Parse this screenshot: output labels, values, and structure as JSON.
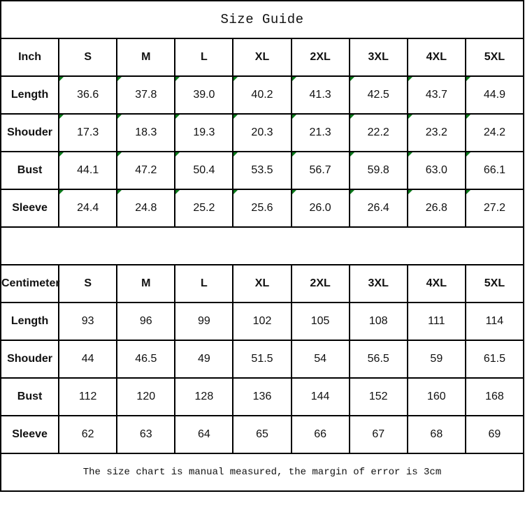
{
  "title": "Size Guide",
  "sizes": [
    "S",
    "M",
    "L",
    "XL",
    "2XL",
    "3XL",
    "4XL",
    "5XL"
  ],
  "inch": {
    "label": "Inch",
    "rows": [
      {
        "name": "Length",
        "values": [
          "36.6",
          "37.8",
          "39.0",
          "40.2",
          "41.3",
          "42.5",
          "43.7",
          "44.9"
        ]
      },
      {
        "name": "Shouder",
        "values": [
          "17.3",
          "18.3",
          "19.3",
          "20.3",
          "21.3",
          "22.2",
          "23.2",
          "24.2"
        ]
      },
      {
        "name": "Bust",
        "values": [
          "44.1",
          "47.2",
          "50.4",
          "53.5",
          "56.7",
          "59.8",
          "63.0",
          "66.1"
        ]
      },
      {
        "name": "Sleeve",
        "values": [
          "24.4",
          "24.8",
          "25.2",
          "25.6",
          "26.0",
          "26.4",
          "26.8",
          "27.2"
        ]
      }
    ]
  },
  "cm": {
    "label": "Centimeter",
    "rows": [
      {
        "name": "Length",
        "values": [
          "93",
          "96",
          "99",
          "102",
          "105",
          "108",
          "111",
          "114"
        ]
      },
      {
        "name": "Shouder",
        "values": [
          "44",
          "46.5",
          "49",
          "51.5",
          "54",
          "56.5",
          "59",
          "61.5"
        ]
      },
      {
        "name": "Bust",
        "values": [
          "112",
          "120",
          "128",
          "136",
          "144",
          "152",
          "160",
          "168"
        ]
      },
      {
        "name": "Sleeve",
        "values": [
          "62",
          "63",
          "64",
          "65",
          "66",
          "67",
          "68",
          "69"
        ]
      }
    ]
  },
  "footer": "The size chart is manual measured, the margin of error is 3cm",
  "colors": {
    "error_indicator": "#0a7a1a",
    "border": "#000000"
  }
}
